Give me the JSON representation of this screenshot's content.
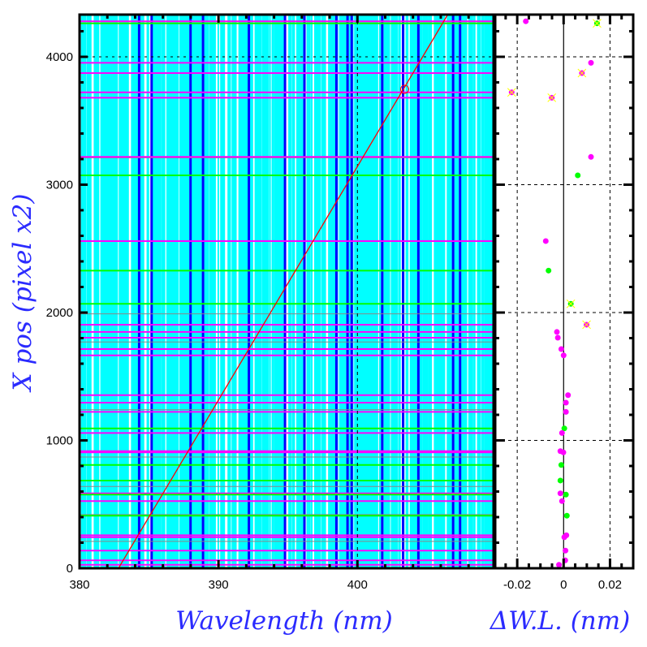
{
  "chart_data": [
    {
      "type": "line",
      "panel": "wavelength-fit",
      "xlabel": "Wavelength (nm)",
      "ylabel": "X pos (pixel x2)",
      "xlim": [
        380,
        409.8
      ],
      "ylim": [
        0,
        4330
      ],
      "xticks": [
        380,
        390,
        400
      ],
      "yticks": [
        0,
        1000,
        2000,
        3000,
        4000
      ],
      "fit_line": {
        "color": "#ff0000",
        "x": [
          382.8,
          406.5
        ],
        "y": [
          0,
          4330
        ]
      },
      "marked_point": {
        "x": 403.4,
        "y": 3746,
        "color": "#ff0000"
      },
      "colors": {
        "cyan": "#00ffff",
        "blue": "#0000ff",
        "green": "#00ff00",
        "magenta": "#ff00ff",
        "gray": "#888888"
      },
      "blue_lines_nm": [
        384.2,
        385.1,
        387.9,
        388.8,
        392.1,
        394.7,
        396.1,
        398.4,
        399.2,
        399.5,
        401.7,
        403.2,
        404.3,
        406.8,
        407.3
      ],
      "gray_lines_y": [
        3210,
        2560,
        2330,
        1990,
        1770,
        1240,
        870,
        640,
        420,
        210
      ]
    },
    {
      "type": "scatter",
      "panel": "residuals",
      "xlabel": "ΔW.L. (nm)",
      "xlim": [
        -0.0295,
        0.03
      ],
      "ylim": [
        0,
        4330
      ],
      "xticks": [
        -0.02,
        0,
        0.02
      ],
      "xtick_labels": [
        "-0.02",
        "0",
        "0.02"
      ],
      "points": [
        {
          "x": -0.0163,
          "y": 4278,
          "c": "magenta",
          "flag": false
        },
        {
          "x": 0.0144,
          "y": 4262,
          "c": "green",
          "flag": true
        },
        {
          "x": 0.0118,
          "y": 3953,
          "c": "magenta",
          "flag": false
        },
        {
          "x": 0.0079,
          "y": 3873,
          "c": "magenta",
          "flag": true
        },
        {
          "x": -0.0224,
          "y": 3722,
          "c": "magenta",
          "flag": true
        },
        {
          "x": -0.0051,
          "y": 3680,
          "c": "magenta",
          "flag": true
        },
        {
          "x": 0.0118,
          "y": 3217,
          "c": "magenta",
          "flag": false
        },
        {
          "x": 0.0061,
          "y": 3073,
          "c": "green",
          "flag": false
        },
        {
          "x": -0.0077,
          "y": 2559,
          "c": "magenta",
          "flag": false
        },
        {
          "x": -0.0065,
          "y": 2328,
          "c": "green",
          "flag": false
        },
        {
          "x": 0.0031,
          "y": 2068,
          "c": "green",
          "flag": true
        },
        {
          "x": 0.0099,
          "y": 1905,
          "c": "magenta",
          "flag": true
        },
        {
          "x": -0.0029,
          "y": 1848,
          "c": "magenta",
          "flag": false
        },
        {
          "x": -0.0025,
          "y": 1803,
          "c": "magenta",
          "flag": false
        },
        {
          "x": -0.001,
          "y": 1714,
          "c": "magenta",
          "flag": false
        },
        {
          "x": 0.0,
          "y": 1665,
          "c": "magenta",
          "flag": false
        },
        {
          "x": 0.0019,
          "y": 1354,
          "c": "magenta",
          "flag": false
        },
        {
          "x": 0.001,
          "y": 1295,
          "c": "magenta",
          "flag": false
        },
        {
          "x": 0.001,
          "y": 1223,
          "c": "magenta",
          "flag": false
        },
        {
          "x": 0.0003,
          "y": 1094,
          "c": "green",
          "flag": false
        },
        {
          "x": -0.0007,
          "y": 1058,
          "c": "magenta",
          "flag": false
        },
        {
          "x": -0.0014,
          "y": 916,
          "c": "magenta",
          "flag": false
        },
        {
          "x": -0.0001,
          "y": 906,
          "c": "magenta",
          "flag": false
        },
        {
          "x": -0.001,
          "y": 808,
          "c": "green",
          "flag": false
        },
        {
          "x": -0.0014,
          "y": 686,
          "c": "green",
          "flag": false
        },
        {
          "x": -0.0014,
          "y": 586,
          "c": "magenta",
          "flag": false
        },
        {
          "x": 0.001,
          "y": 576,
          "c": "green",
          "flag": false
        },
        {
          "x": -0.0007,
          "y": 525,
          "c": "magenta",
          "flag": false
        },
        {
          "x": 0.0014,
          "y": 411,
          "c": "green",
          "flag": false
        },
        {
          "x": 0.0012,
          "y": 258,
          "c": "magenta",
          "flag": false
        },
        {
          "x": 0.0003,
          "y": 243,
          "c": "magenta",
          "flag": false
        },
        {
          "x": 0.0008,
          "y": 138,
          "c": "magenta",
          "flag": false
        },
        {
          "x": 0.0007,
          "y": 62,
          "c": "magenta",
          "flag": false
        },
        {
          "x": -0.002,
          "y": 27,
          "c": "magenta",
          "flag": false
        }
      ]
    }
  ]
}
